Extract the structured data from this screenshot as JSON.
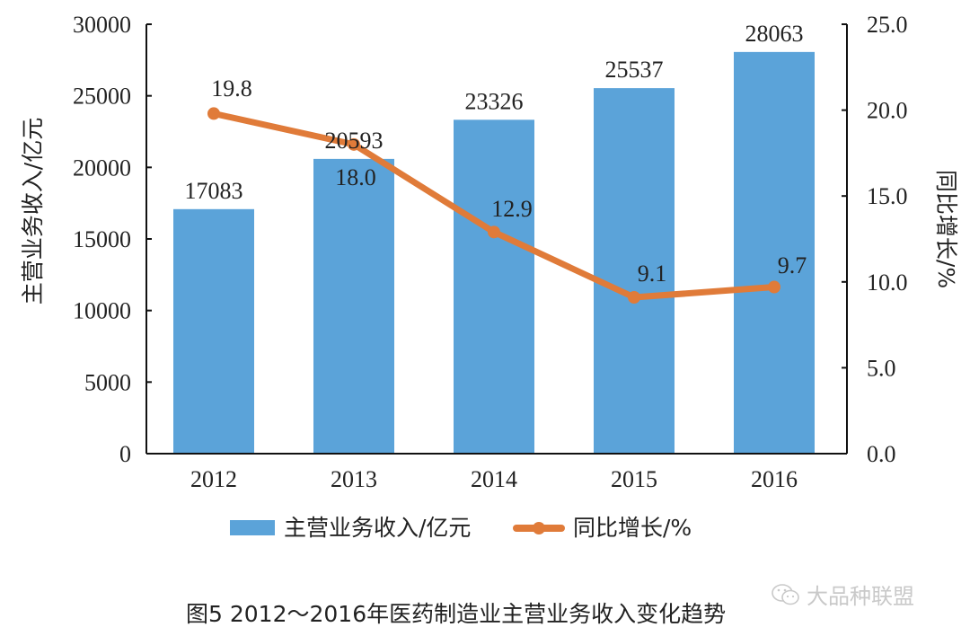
{
  "chart_data": {
    "type": "bar+line",
    "title": "",
    "caption": "图5 2012～2016年医药制造业主营业务收入变化趋势",
    "categories": [
      "2012",
      "2013",
      "2014",
      "2015",
      "2016"
    ],
    "series": [
      {
        "name": "主营业务收入/亿元",
        "type": "bar",
        "axis": "left",
        "color": "#5ba3d9",
        "values": [
          17083,
          20593,
          23326,
          25537,
          28063
        ],
        "labels": [
          "17083",
          "20593",
          "23326",
          "25537",
          "28063"
        ]
      },
      {
        "name": "同比增长/%",
        "type": "line",
        "axis": "right",
        "color": "#e07b39",
        "values": [
          19.8,
          18.0,
          12.9,
          9.1,
          9.7
        ],
        "labels": [
          "19.8",
          "18.0",
          "12.9",
          "9.1",
          "9.7"
        ]
      }
    ],
    "left_axis": {
      "label": "主营业务收入/亿元",
      "ylim": [
        0,
        30000
      ],
      "ticks": [
        "0",
        "5000",
        "10000",
        "15000",
        "20000",
        "25000",
        "30000"
      ]
    },
    "right_axis": {
      "label": "同比增长/%",
      "ylim": [
        0,
        25
      ],
      "ticks": [
        "0.0",
        "5.0",
        "10.0",
        "15.0",
        "20.0",
        "25.0"
      ]
    },
    "grid": false,
    "legend_position": "bottom"
  },
  "legend": {
    "bar_label": "主营业务收入/亿元",
    "line_label": "同比增长/%"
  },
  "caption": "图5 2012～2016年医药制造业主营业务收入变化趋势",
  "watermark": "大品种联盟"
}
